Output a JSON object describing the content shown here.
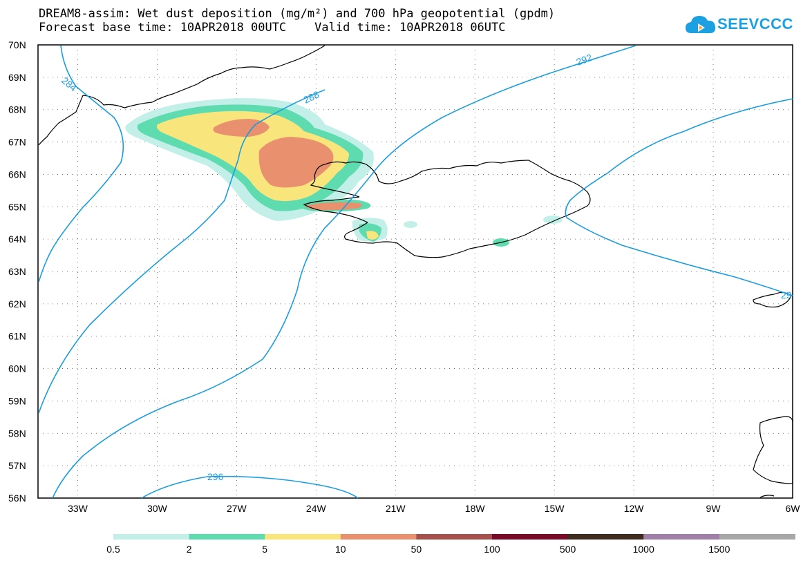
{
  "title": {
    "line1": "DREAM8-assim: Wet dust deposition (mg/m²) and 700 hPa geopotential (gpdm)",
    "line2": "Forecast base time: 10APR2018 00UTC    Valid time: 10APR2018 06UTC"
  },
  "logo": {
    "text": "SEEVCCC",
    "icon": "cloud-icon",
    "color": "#1ba1e2"
  },
  "map": {
    "lat_labels": [
      "70N",
      "69N",
      "68N",
      "67N",
      "66N",
      "65N",
      "64N",
      "63N",
      "62N",
      "61N",
      "60N",
      "59N",
      "58N",
      "57N",
      "56N"
    ],
    "lon_labels": [
      "33W",
      "30W",
      "27W",
      "24W",
      "21W",
      "18W",
      "15W",
      "12W",
      "9W",
      "6W"
    ],
    "lat_range": [
      56,
      70
    ],
    "lon_range": [
      -34.5,
      -6
    ],
    "grid": "dotted",
    "contour_color": "#1a9de0",
    "coast_color": "#000000",
    "contour_labels": [
      "284",
      "288",
      "292",
      "296",
      "29"
    ]
  },
  "colorbar": {
    "labels": [
      "0.5",
      "2",
      "5",
      "10",
      "50",
      "100",
      "500",
      "1000",
      "1500"
    ],
    "colors": [
      "#c2f0e8",
      "#5fdbb0",
      "#f8e57c",
      "#e9906e",
      "#a5504a",
      "#7a0a2a",
      "#3e2d1e",
      "#a07fa8",
      "#a7a7a7"
    ]
  }
}
